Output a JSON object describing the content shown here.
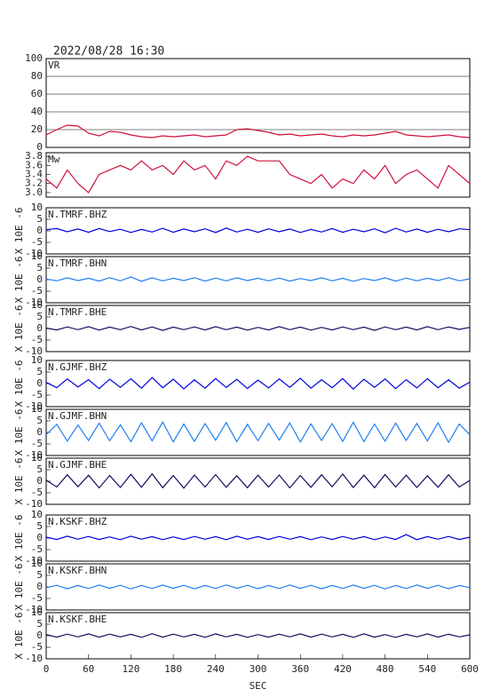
{
  "chart_data": [
    {
      "type": "line",
      "title": "2022/08/28 16:30",
      "label": "VR",
      "ylim": [
        0,
        100
      ],
      "yticks": [
        0,
        20,
        40,
        60,
        80,
        100
      ],
      "grid": true,
      "x": [
        0,
        15,
        30,
        45,
        60,
        75,
        90,
        105,
        120,
        135,
        150,
        165,
        180,
        195,
        210,
        225,
        240,
        255,
        270,
        285,
        300,
        315,
        330,
        345,
        360,
        375,
        390,
        405,
        420,
        435,
        450,
        465,
        480,
        495,
        510,
        525,
        540,
        555,
        570,
        585,
        600
      ],
      "series": [
        {
          "color": "#d0103a",
          "values": [
            14,
            20,
            25,
            24,
            16,
            13,
            18,
            17,
            14,
            12,
            11,
            13,
            12,
            13,
            14,
            12,
            13,
            14,
            20,
            21,
            19,
            17,
            14,
            15,
            13,
            14,
            15,
            13,
            12,
            14,
            13,
            14,
            16,
            18,
            14,
            13,
            12,
            13,
            14,
            12,
            11
          ]
        }
      ]
    },
    {
      "type": "line",
      "label": "Mw",
      "ylim": [
        2.9,
        3.88
      ],
      "yticks": [
        {
          "value": 3.0,
          "label": "3.0"
        },
        3.2,
        3.4,
        3.6,
        3.8
      ],
      "grid": false,
      "x": [
        0,
        15,
        30,
        45,
        60,
        75,
        90,
        105,
        120,
        135,
        150,
        165,
        180,
        195,
        210,
        225,
        240,
        255,
        270,
        285,
        300,
        315,
        330,
        345,
        360,
        375,
        390,
        405,
        420,
        435,
        450,
        465,
        480,
        495,
        510,
        525,
        540,
        555,
        570,
        585,
        600
      ],
      "series": [
        {
          "color": "#d0103a",
          "values": [
            3.3,
            3.1,
            3.5,
            3.2,
            3.0,
            3.4,
            3.5,
            3.6,
            3.5,
            3.7,
            3.5,
            3.6,
            3.4,
            3.7,
            3.5,
            3.6,
            3.3,
            3.7,
            3.6,
            3.8,
            3.7,
            3.7,
            3.7,
            3.4,
            3.3,
            3.2,
            3.4,
            3.1,
            3.3,
            3.2,
            3.5,
            3.3,
            3.6,
            3.2,
            3.4,
            3.5,
            3.3,
            3.1,
            3.6,
            3.4,
            3.2
          ]
        }
      ]
    },
    {
      "type": "line",
      "label": "N.TMRF.BHZ",
      "ylabel": "X 10E -6",
      "ylim": [
        -10,
        10
      ],
      "yticks": [
        -10,
        -5,
        0,
        5,
        10
      ],
      "x": [
        0,
        15,
        30,
        45,
        60,
        75,
        90,
        105,
        120,
        135,
        150,
        165,
        180,
        195,
        210,
        225,
        240,
        255,
        270,
        285,
        300,
        315,
        330,
        345,
        360,
        375,
        390,
        405,
        420,
        435,
        450,
        465,
        480,
        495,
        510,
        525,
        540,
        555,
        570,
        585,
        600
      ],
      "series": [
        {
          "color": "#0000e0",
          "values": [
            0.5,
            1,
            -0.4,
            0.8,
            -0.6,
            1,
            -0.3,
            0.7,
            -0.7,
            0.6,
            -0.5,
            1.1,
            -0.6,
            0.8,
            -0.4,
            0.9,
            -0.7,
            1.2,
            -0.5,
            0.7,
            -0.6,
            0.9,
            -0.4,
            0.8,
            -0.7,
            0.6,
            -0.5,
            1,
            -0.6,
            0.7,
            -0.4,
            0.9,
            -0.8,
            1.1,
            -0.5,
            0.8,
            -0.6,
            0.7,
            -0.4,
            0.9,
            0.5
          ]
        }
      ]
    },
    {
      "type": "line",
      "label": "N.TMRF.BHN",
      "ylabel": "X 10E -6",
      "ylim": [
        -10,
        10
      ],
      "yticks": [
        -10,
        -5,
        0,
        5,
        10
      ],
      "x": [
        0,
        15,
        30,
        45,
        60,
        75,
        90,
        105,
        120,
        135,
        150,
        165,
        180,
        195,
        210,
        225,
        240,
        255,
        270,
        285,
        300,
        315,
        330,
        345,
        360,
        375,
        390,
        405,
        420,
        435,
        450,
        465,
        480,
        495,
        510,
        525,
        540,
        555,
        570,
        585,
        600
      ],
      "series": [
        {
          "color": "#2080f0",
          "values": [
            0.3,
            -0.5,
            0.8,
            -0.4,
            0.6,
            -0.6,
            0.9,
            -0.5,
            1.2,
            -0.7,
            0.8,
            -0.5,
            0.6,
            -0.4,
            0.9,
            -0.6,
            0.7,
            -0.5,
            0.8,
            -0.4,
            0.6,
            -0.5,
            0.7,
            -0.6,
            0.5,
            -0.4,
            0.8,
            -0.5,
            0.6,
            -0.7,
            0.5,
            -0.4,
            0.8,
            -0.6,
            0.7,
            -0.5,
            0.6,
            -0.4,
            0.9,
            -0.5,
            0.4
          ]
        }
      ]
    },
    {
      "type": "line",
      "label": "N.TMRF.BHE",
      "ylabel": "X 10E -6",
      "ylim": [
        -10,
        10
      ],
      "yticks": [
        -10,
        -5,
        0,
        5,
        10
      ],
      "x": [
        0,
        15,
        30,
        45,
        60,
        75,
        90,
        105,
        120,
        135,
        150,
        165,
        180,
        195,
        210,
        225,
        240,
        255,
        270,
        285,
        300,
        315,
        330,
        345,
        360,
        375,
        390,
        405,
        420,
        435,
        450,
        465,
        480,
        495,
        510,
        525,
        540,
        555,
        570,
        585,
        600
      ],
      "series": [
        {
          "color": "#101060",
          "values": [
            0.2,
            -0.6,
            0.7,
            -0.5,
            0.8,
            -0.7,
            0.6,
            -0.5,
            0.9,
            -0.6,
            0.7,
            -0.8,
            0.6,
            -0.5,
            0.7,
            -0.6,
            0.8,
            -0.5,
            0.6,
            -0.7,
            0.5,
            -0.6,
            0.8,
            -0.5,
            0.6,
            -0.7,
            0.5,
            -0.6,
            0.7,
            -0.5,
            0.6,
            -0.8,
            0.7,
            -0.5,
            0.6,
            -0.6,
            0.8,
            -0.5,
            0.7,
            -0.4,
            0.5
          ]
        }
      ]
    },
    {
      "type": "line",
      "label": "N.GJMF.BHZ",
      "ylabel": "X 10E -6",
      "ylim": [
        -10,
        10
      ],
      "yticks": [
        -10,
        -5,
        0,
        5,
        10
      ],
      "x": [
        0,
        15,
        30,
        45,
        60,
        75,
        90,
        105,
        120,
        135,
        150,
        165,
        180,
        195,
        210,
        225,
        240,
        255,
        270,
        285,
        300,
        315,
        330,
        345,
        360,
        375,
        390,
        405,
        420,
        435,
        450,
        465,
        480,
        495,
        510,
        525,
        540,
        555,
        570,
        585,
        600
      ],
      "series": [
        {
          "color": "#0000e0",
          "values": [
            0.5,
            -1.8,
            2,
            -1.5,
            1.7,
            -2.2,
            1.9,
            -1.6,
            2.1,
            -2,
            2.6,
            -1.8,
            1.9,
            -2.3,
            1.6,
            -2,
            2.2,
            -1.7,
            1.8,
            -2.1,
            1.5,
            -1.9,
            2,
            -1.6,
            2.3,
            -2,
            1.7,
            -1.8,
            2.2,
            -2.4,
            1.9,
            -1.6,
            2,
            -2.2,
            1.7,
            -1.9,
            2.1,
            -1.8,
            1.6,
            -2,
            0.6
          ]
        }
      ]
    },
    {
      "type": "line",
      "label": "N.GJMF.BHN",
      "ylabel": "X 10E -6",
      "ylim": [
        -10,
        10
      ],
      "yticks": [
        -10,
        -5,
        0,
        5,
        10
      ],
      "x": [
        0,
        15,
        30,
        45,
        60,
        75,
        90,
        105,
        120,
        135,
        150,
        165,
        180,
        195,
        210,
        225,
        240,
        255,
        270,
        285,
        300,
        315,
        330,
        345,
        360,
        375,
        390,
        405,
        420,
        435,
        450,
        465,
        480,
        495,
        510,
        525,
        540,
        555,
        570,
        585,
        600
      ],
      "series": [
        {
          "color": "#2080f0",
          "values": [
            -1,
            3.5,
            -3.8,
            3.2,
            -3.5,
            4,
            -3.6,
            3.3,
            -4,
            4.2,
            -3.7,
            4.5,
            -4.1,
            3.6,
            -3.9,
            3.8,
            -3.4,
            4.3,
            -4,
            3.5,
            -3.6,
            3.9,
            -3.3,
            4.1,
            -4.2,
            3.7,
            -3.5,
            3.8,
            -3.9,
            4.4,
            -4,
            3.6,
            -3.8,
            4,
            -3.5,
            3.9,
            -3.7,
            4.2,
            -4.3,
            3.6,
            -1
          ]
        }
      ]
    },
    {
      "type": "line",
      "label": "N.GJMF.BHE",
      "ylabel": "X 10E -6",
      "ylim": [
        -10,
        10
      ],
      "yticks": [
        -10,
        -5,
        0,
        5,
        10
      ],
      "x": [
        0,
        15,
        30,
        45,
        60,
        75,
        90,
        105,
        120,
        135,
        150,
        165,
        180,
        195,
        210,
        225,
        240,
        255,
        270,
        285,
        300,
        315,
        330,
        345,
        360,
        375,
        390,
        405,
        420,
        435,
        450,
        465,
        480,
        495,
        510,
        525,
        540,
        555,
        570,
        585,
        600
      ],
      "series": [
        {
          "color": "#101060",
          "values": [
            0.5,
            -2.5,
            2.8,
            -2.4,
            2.6,
            -2.9,
            2.5,
            -2.7,
            3,
            -2.6,
            3.2,
            -2.8,
            2.5,
            -3,
            2.7,
            -2.5,
            2.9,
            -2.6,
            2.4,
            -2.8,
            2.6,
            -2.5,
            2.7,
            -2.9,
            2.5,
            -2.6,
            2.8,
            -2.4,
            3.1,
            -2.7,
            2.6,
            -2.8,
            2.9,
            -2.5,
            2.6,
            -2.7,
            2.4,
            -2.6,
            2.8,
            -2.5,
            0.4
          ]
        }
      ]
    },
    {
      "type": "line",
      "label": "N.KSKF.BHZ",
      "ylabel": "X 10E -6",
      "ylim": [
        -10,
        10
      ],
      "yticks": [
        -10,
        -5,
        0,
        5,
        10
      ],
      "x": [
        0,
        15,
        30,
        45,
        60,
        75,
        90,
        105,
        120,
        135,
        150,
        165,
        180,
        195,
        210,
        225,
        240,
        255,
        270,
        285,
        300,
        315,
        330,
        345,
        360,
        375,
        390,
        405,
        420,
        435,
        450,
        465,
        480,
        495,
        510,
        525,
        540,
        555,
        570,
        585,
        600
      ],
      "series": [
        {
          "color": "#0000e0",
          "values": [
            0.4,
            -0.6,
            0.8,
            -0.5,
            0.7,
            -0.6,
            0.5,
            -0.7,
            0.8,
            -0.5,
            0.6,
            -0.7,
            0.5,
            -0.6,
            0.7,
            -0.5,
            0.6,
            -0.7,
            0.8,
            -0.5,
            0.6,
            -0.6,
            0.7,
            -0.5,
            0.6,
            -0.7,
            0.5,
            -0.6,
            0.7,
            -0.5,
            0.6,
            -0.7,
            0.5,
            -0.6,
            1.5,
            -0.7,
            0.6,
            -0.5,
            0.7,
            -0.6,
            0.4
          ]
        }
      ]
    },
    {
      "type": "line",
      "label": "N.KSKF.BHN",
      "ylabel": "X 10E -6",
      "ylim": [
        -10,
        10
      ],
      "yticks": [
        -10,
        -5,
        0,
        5,
        10
      ],
      "x": [
        0,
        15,
        30,
        45,
        60,
        75,
        90,
        105,
        120,
        135,
        150,
        165,
        180,
        195,
        210,
        225,
        240,
        255,
        270,
        285,
        300,
        315,
        330,
        345,
        360,
        375,
        390,
        405,
        420,
        435,
        450,
        465,
        480,
        495,
        510,
        525,
        540,
        555,
        570,
        585,
        600
      ],
      "series": [
        {
          "color": "#2080f0",
          "values": [
            -0.3,
            0.7,
            -0.8,
            0.6,
            -0.7,
            0.8,
            -0.6,
            0.7,
            -0.9,
            0.6,
            -0.7,
            0.8,
            -0.6,
            0.7,
            -0.8,
            0.6,
            -0.7,
            0.9,
            -0.6,
            0.7,
            -0.8,
            0.6,
            -0.7,
            0.8,
            -0.6,
            0.7,
            -0.8,
            0.6,
            -0.7,
            0.8,
            -0.6,
            0.7,
            -0.9,
            0.6,
            -0.7,
            0.8,
            -0.6,
            0.7,
            -0.8,
            0.6,
            -0.3
          ]
        }
      ]
    },
    {
      "type": "line",
      "label": "N.KSKF.BHE",
      "ylabel": "X 10E -6",
      "xlabel": "SEC",
      "ylim": [
        -10,
        10
      ],
      "yticks": [
        -10,
        -5,
        0,
        5,
        10
      ],
      "xlim": [
        0,
        600
      ],
      "xticks": [
        0,
        60,
        120,
        180,
        240,
        300,
        360,
        420,
        480,
        540,
        600
      ],
      "x": [
        0,
        15,
        30,
        45,
        60,
        75,
        90,
        105,
        120,
        135,
        150,
        165,
        180,
        195,
        210,
        225,
        240,
        255,
        270,
        285,
        300,
        315,
        330,
        345,
        360,
        375,
        390,
        405,
        420,
        435,
        450,
        465,
        480,
        495,
        510,
        525,
        540,
        555,
        570,
        585,
        600
      ],
      "series": [
        {
          "color": "#101060",
          "values": [
            0.5,
            -0.6,
            0.7,
            -0.5,
            0.8,
            -0.6,
            0.7,
            -0.5,
            0.6,
            -0.7,
            0.9,
            -0.6,
            0.7,
            -0.5,
            0.6,
            -0.7,
            0.8,
            -0.5,
            0.6,
            -0.7,
            0.5,
            -0.6,
            0.7,
            -0.5,
            0.8,
            -0.6,
            0.7,
            -0.5,
            0.6,
            -0.7,
            0.8,
            -0.6,
            0.5,
            -0.7,
            0.6,
            -0.5,
            0.8,
            -0.6,
            0.7,
            -0.5,
            0.4
          ]
        }
      ]
    }
  ]
}
